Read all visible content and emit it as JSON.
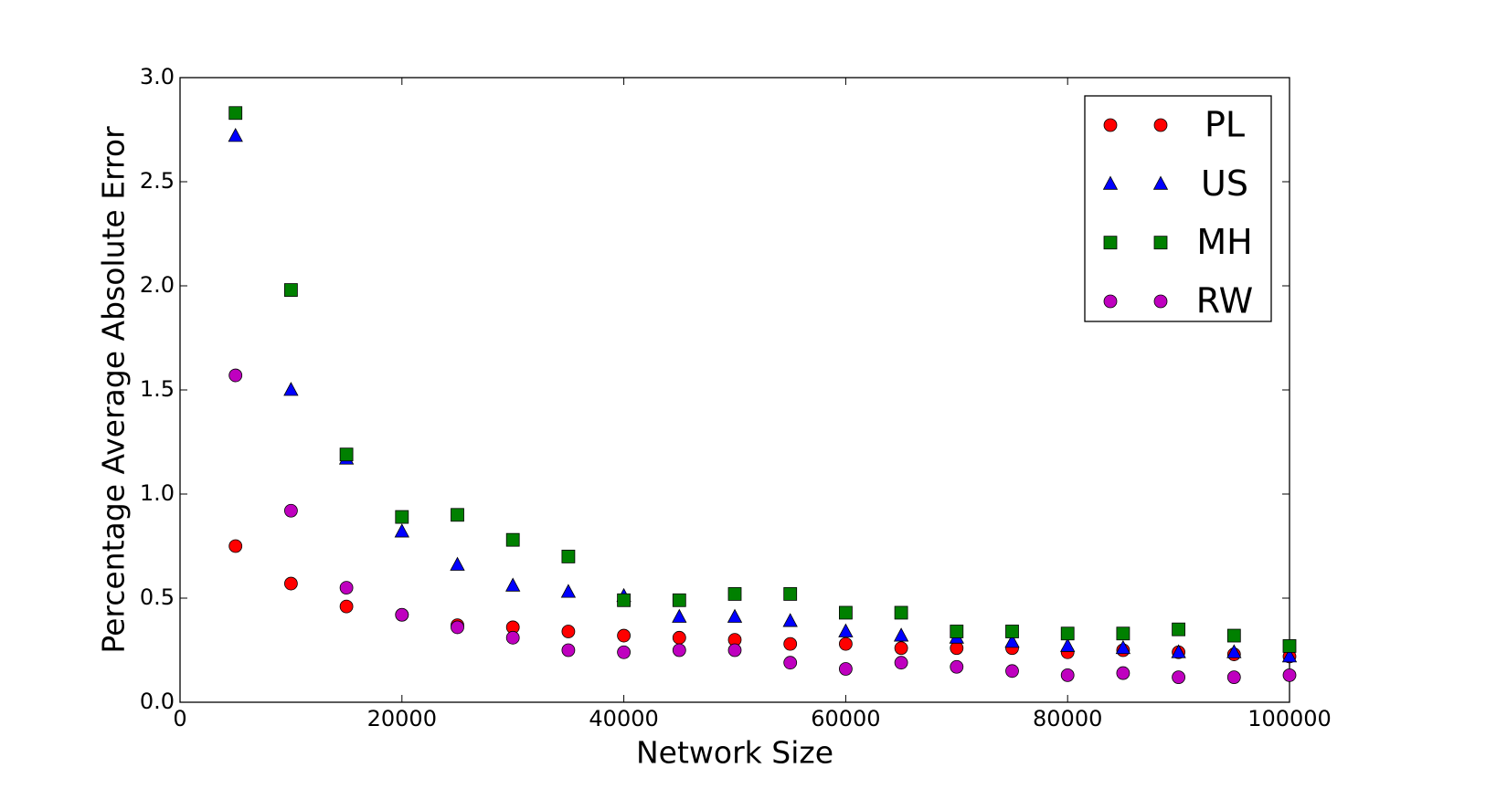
{
  "chart_data": {
    "type": "scatter",
    "xlabel": "Network Size",
    "ylabel": "Percentage Average Absolute Error",
    "x": [
      5000,
      10000,
      15000,
      20000,
      25000,
      30000,
      35000,
      40000,
      45000,
      50000,
      55000,
      60000,
      65000,
      70000,
      75000,
      80000,
      85000,
      90000,
      95000,
      100000
    ],
    "series": [
      {
        "name": "PL",
        "color": "#ff0000",
        "marker": "circle",
        "values": [
          0.75,
          0.57,
          0.46,
          0.42,
          0.37,
          0.36,
          0.34,
          0.32,
          0.31,
          0.3,
          0.28,
          0.28,
          0.26,
          0.26,
          0.26,
          0.24,
          0.25,
          0.24,
          0.23,
          0.22
        ]
      },
      {
        "name": "US",
        "color": "#0000ff",
        "marker": "triangle",
        "values": [
          2.72,
          1.5,
          1.17,
          0.82,
          0.66,
          0.56,
          0.53,
          0.51,
          0.41,
          0.41,
          0.39,
          0.34,
          0.32,
          0.31,
          0.29,
          0.27,
          0.26,
          0.24,
          0.24,
          0.22
        ]
      },
      {
        "name": "MH",
        "color": "#008000",
        "marker": "square",
        "values": [
          2.83,
          1.98,
          1.19,
          0.89,
          0.9,
          0.78,
          0.7,
          0.49,
          0.49,
          0.52,
          0.52,
          0.43,
          0.43,
          0.34,
          0.34,
          0.33,
          0.33,
          0.35,
          0.32,
          0.27
        ]
      },
      {
        "name": "RW",
        "color": "#bf00bf",
        "marker": "circle",
        "values": [
          1.57,
          0.92,
          0.55,
          0.42,
          0.36,
          0.31,
          0.25,
          0.24,
          0.25,
          0.25,
          0.19,
          0.16,
          0.19,
          0.17,
          0.15,
          0.13,
          0.14,
          0.12,
          0.12,
          0.13
        ]
      }
    ],
    "xlim": [
      0,
      100000
    ],
    "xticks": [
      0,
      20000,
      40000,
      60000,
      80000,
      100000
    ],
    "ylim": [
      0,
      3.0
    ],
    "yticks": [
      {
        "value": 0,
        "label": "0.0"
      },
      {
        "value": 0.5,
        "label": "0.5"
      },
      {
        "value": 1.0,
        "label": "1.0"
      },
      {
        "value": 1.5,
        "label": "1.5"
      },
      {
        "value": 2.0,
        "label": "2.0"
      },
      {
        "value": 2.5,
        "label": "2.5"
      },
      {
        "value": 3.0,
        "label": "3.0"
      }
    ],
    "grid": false,
    "legend": "upper right"
  }
}
